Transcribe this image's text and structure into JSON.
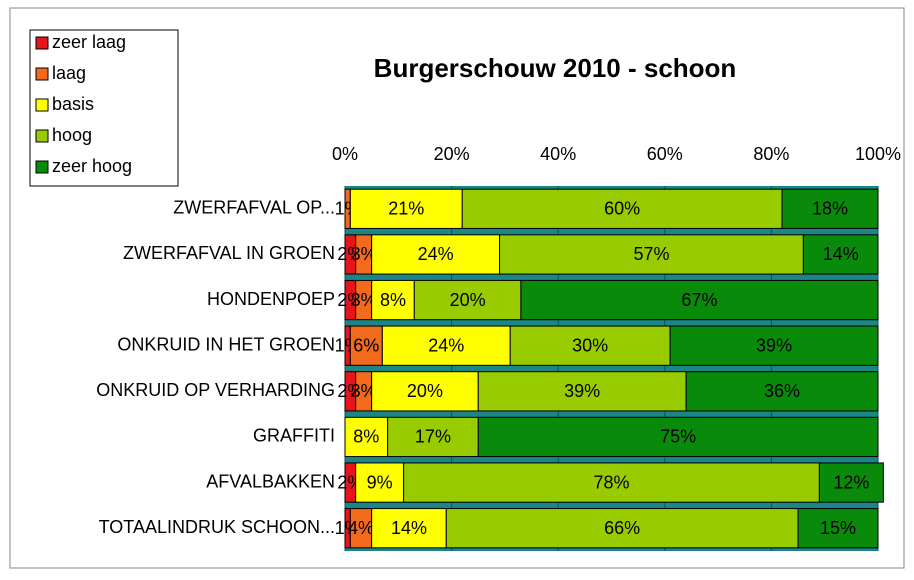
{
  "chart_data": {
    "type": "stacked_barh",
    "title": "Burgerschouw 2010 - schoon",
    "categories": [
      "ZWERFAFVAL OP...",
      "ZWERFAFVAL IN GROEN",
      "HONDENPOEP",
      "ONKRUID IN HET GROEN",
      "ONKRUID OP VERHARDING",
      "GRAFFITI",
      "AFVALBAKKEN",
      "TOTAALINDRUK SCHOON..."
    ],
    "series": [
      {
        "name": "zeer laag",
        "color": "#e8141c",
        "values": [
          null,
          2,
          2,
          1,
          2,
          null,
          2,
          1
        ],
        "value_labels": [
          null,
          "2%",
          "2%",
          "1%",
          "2%",
          null,
          "2%",
          "1%"
        ]
      },
      {
        "name": "laag",
        "color": "#f26a1b",
        "values": [
          1,
          3,
          3,
          6,
          3,
          null,
          null,
          4
        ],
        "value_labels": [
          "1%",
          "3%",
          "3%",
          "6%",
          "3%",
          null,
          null,
          "4%"
        ]
      },
      {
        "name": "basis",
        "color": "#ffff00",
        "values": [
          21,
          24,
          8,
          24,
          20,
          8,
          9,
          14
        ],
        "value_labels": [
          "21%",
          "24%",
          "8%",
          "24%",
          "20%",
          "8%",
          "9%",
          "14%"
        ]
      },
      {
        "name": "hoog",
        "color": "#99cc00",
        "values": [
          60,
          57,
          20,
          30,
          39,
          17,
          78,
          66
        ],
        "value_labels": [
          "60%",
          "57%",
          "20%",
          "30%",
          "39%",
          "17%",
          "78%",
          "66%"
        ]
      },
      {
        "name": "zeer hoog",
        "color": "#0a8a0a",
        "values": [
          18,
          14,
          67,
          39,
          36,
          75,
          12,
          15
        ],
        "value_labels": [
          "18%",
          "14%",
          "67%",
          "39%",
          "36%",
          "75%",
          "12%",
          "15%"
        ]
      }
    ],
    "xlim": [
      0,
      100
    ],
    "xticks": [
      {
        "value": 0,
        "label": "0%"
      },
      {
        "value": 20,
        "label": "20%"
      },
      {
        "value": 40,
        "label": "40%"
      },
      {
        "value": 60,
        "label": "60%"
      },
      {
        "value": 80,
        "label": "80%"
      },
      {
        "value": 100,
        "label": "100%"
      }
    ],
    "grid": true,
    "legend": "top-left",
    "plot_background": "#1c8585"
  }
}
